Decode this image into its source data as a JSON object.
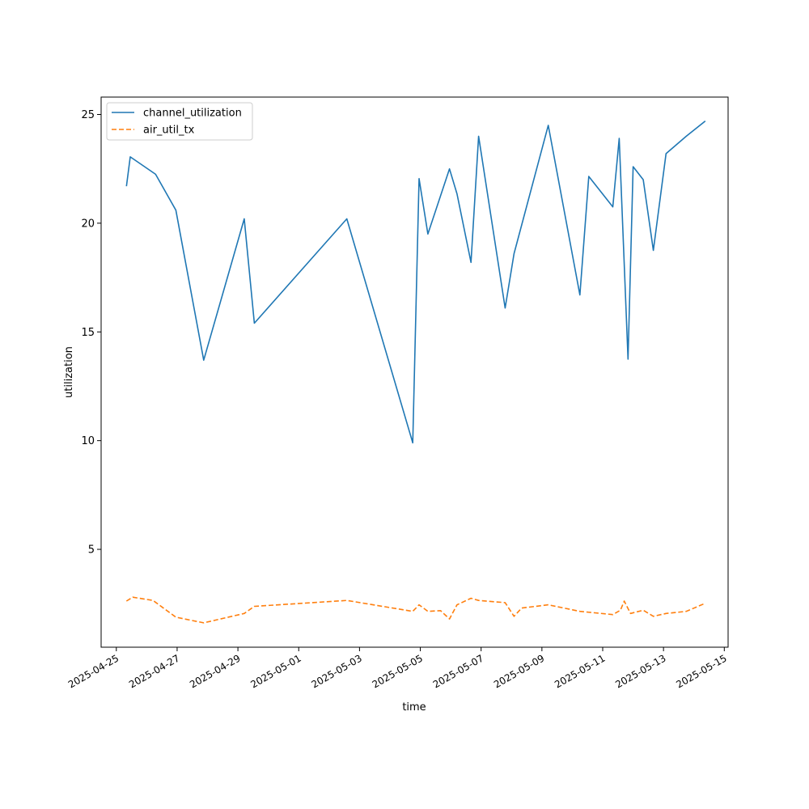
{
  "chart_data": {
    "type": "line",
    "title": "",
    "xlabel": "time",
    "ylabel": "utilization",
    "xlim": [
      "2025-04-24T12:00",
      "2025-05-15T03:00"
    ],
    "ylim": [
      0.5,
      25.8
    ],
    "x_ticks": [
      "2025-04-25",
      "2025-04-27",
      "2025-04-29",
      "2025-05-01",
      "2025-05-03",
      "2025-05-05",
      "2025-05-07",
      "2025-05-09",
      "2025-05-11",
      "2025-05-13",
      "2025-05-15"
    ],
    "y_ticks": [
      5,
      10,
      15,
      20,
      25
    ],
    "grid": false,
    "legend_position": "top-left",
    "series": [
      {
        "name": "channel_utilization",
        "color": "#1f77b4",
        "style": "solid",
        "points": [
          [
            "2025-04-25T08:00",
            21.7
          ],
          [
            "2025-04-25T11:00",
            23.05
          ],
          [
            "2025-04-26T07:00",
            22.25
          ],
          [
            "2025-04-26T23:00",
            20.6
          ],
          [
            "2025-04-27T21:00",
            13.7
          ],
          [
            "2025-04-29T05:00",
            20.2
          ],
          [
            "2025-04-29T13:00",
            15.4
          ],
          [
            "2025-05-02T14:00",
            20.2
          ],
          [
            "2025-05-04T18:00",
            9.9
          ],
          [
            "2025-05-04T23:00",
            22.05
          ],
          [
            "2025-05-05T06:00",
            19.5
          ],
          [
            "2025-05-05T23:00",
            22.5
          ],
          [
            "2025-05-06T05:00",
            21.35
          ],
          [
            "2025-05-06T16:00",
            18.2
          ],
          [
            "2025-05-06T22:00",
            24.0
          ],
          [
            "2025-05-07T19:00",
            16.1
          ],
          [
            "2025-05-08T02:00",
            18.6
          ],
          [
            "2025-05-09T05:00",
            24.5
          ],
          [
            "2025-05-10T06:00",
            16.7
          ],
          [
            "2025-05-10T13:00",
            22.15
          ],
          [
            "2025-05-11T08:00",
            20.75
          ],
          [
            "2025-05-11T13:00",
            23.9
          ],
          [
            "2025-05-11T20:00",
            13.75
          ],
          [
            "2025-05-12T00:00",
            22.6
          ],
          [
            "2025-05-12T08:00",
            22.0
          ],
          [
            "2025-05-12T16:00",
            18.75
          ],
          [
            "2025-05-13T02:00",
            23.2
          ],
          [
            "2025-05-13T18:00",
            24.0
          ],
          [
            "2025-05-14T09:00",
            24.7
          ]
        ]
      },
      {
        "name": "air_util_tx",
        "color": "#ff7f0e",
        "style": "dashed",
        "points": [
          [
            "2025-04-25T08:00",
            2.62
          ],
          [
            "2025-04-25T13:00",
            2.8
          ],
          [
            "2025-04-26T05:00",
            2.65
          ],
          [
            "2025-04-26T23:00",
            1.88
          ],
          [
            "2025-04-27T21:00",
            1.62
          ],
          [
            "2025-04-29T05:00",
            2.05
          ],
          [
            "2025-04-29T13:00",
            2.38
          ],
          [
            "2025-05-02T14:00",
            2.65
          ],
          [
            "2025-05-04T18:00",
            2.15
          ],
          [
            "2025-05-04T23:00",
            2.45
          ],
          [
            "2025-05-05T06:00",
            2.15
          ],
          [
            "2025-05-05T16:00",
            2.18
          ],
          [
            "2025-05-05T23:00",
            1.8
          ],
          [
            "2025-05-06T05:00",
            2.45
          ],
          [
            "2025-05-06T16:00",
            2.75
          ],
          [
            "2025-05-06T22:00",
            2.65
          ],
          [
            "2025-05-07T19:00",
            2.55
          ],
          [
            "2025-05-08T02:00",
            1.92
          ],
          [
            "2025-05-08T08:00",
            2.3
          ],
          [
            "2025-05-09T05:00",
            2.45
          ],
          [
            "2025-05-10T06:00",
            2.15
          ],
          [
            "2025-05-11T08:00",
            2.0
          ],
          [
            "2025-05-11T14:00",
            2.2
          ],
          [
            "2025-05-11T17:00",
            2.62
          ],
          [
            "2025-05-11T22:00",
            2.05
          ],
          [
            "2025-05-12T08:00",
            2.2
          ],
          [
            "2025-05-12T16:00",
            1.92
          ],
          [
            "2025-05-13T02:00",
            2.05
          ],
          [
            "2025-05-13T18:00",
            2.15
          ],
          [
            "2025-05-14T09:00",
            2.52
          ]
        ]
      }
    ]
  }
}
